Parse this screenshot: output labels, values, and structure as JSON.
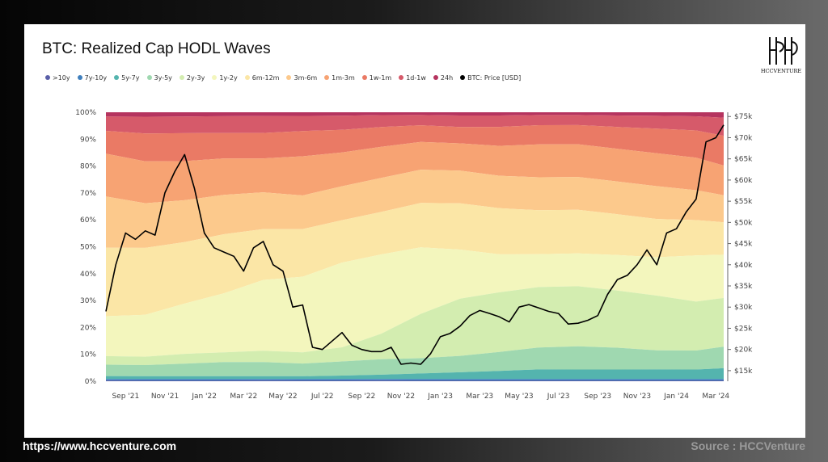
{
  "footer": {
    "url": "https://www.hccventure.com",
    "source": "Source : HCCVenture"
  },
  "logo": {
    "text": "HCCVENTURE"
  },
  "chart_data": {
    "type": "area",
    "stacked": true,
    "title": "BTC: Realized Cap HODL Waves",
    "legend_position": "top-left",
    "grid": false,
    "x_ticks": [
      "Sep '21",
      "Nov '21",
      "Jan '22",
      "Mar '22",
      "May '22",
      "Jul '22",
      "Sep '22",
      "Nov '22",
      "Jan '23",
      "Mar '23",
      "May '23",
      "Jul '23",
      "Sep '23",
      "Nov '23",
      "Jan '24",
      "Mar '24"
    ],
    "x_tick_pos": [
      1,
      3,
      5,
      7,
      9,
      11,
      13,
      15,
      17,
      19,
      21,
      23,
      25,
      27,
      29,
      31
    ],
    "x_range": [
      0,
      31.4
    ],
    "y_left_ticks": [
      "0%",
      "10%",
      "20%",
      "30%",
      "40%",
      "50%",
      "60%",
      "70%",
      "80%",
      "90%",
      "100%"
    ],
    "y_left_range": [
      0,
      100
    ],
    "y_right_ticks": [
      "$15k",
      "$20k",
      "$25k",
      "$30k",
      "$35k",
      "$40k",
      "$45k",
      "$50k",
      "$55k",
      "$60k",
      "$65k",
      "$70k",
      "$75k"
    ],
    "y_right_values": [
      15000,
      20000,
      25000,
      30000,
      35000,
      40000,
      45000,
      50000,
      55000,
      60000,
      65000,
      70000,
      75000
    ],
    "y_right_range": [
      12500,
      76000
    ],
    "months_x": [
      0,
      2,
      4,
      6,
      8,
      10,
      12,
      14,
      16,
      18,
      20,
      22,
      24,
      26,
      28,
      30,
      31.4
    ],
    "series": [
      {
        "name": ">10y",
        "color": "#5a5fa8",
        "values": [
          0.3,
          0.3,
          0.3,
          0.3,
          0.3,
          0.3,
          0.3,
          0.3,
          0.3,
          0.3,
          0.3,
          0.3,
          0.3,
          0.3,
          0.3,
          0.3,
          0.3
        ]
      },
      {
        "name": "7y-10y",
        "color": "#3f7fbd",
        "values": [
          0.5,
          0.5,
          0.5,
          0.5,
          0.5,
          0.5,
          0.5,
          0.5,
          0.5,
          0.5,
          0.5,
          0.5,
          0.5,
          0.5,
          0.5,
          0.5,
          0.5
        ]
      },
      {
        "name": "5y-7y",
        "color": "#54b4ae",
        "values": [
          1,
          1,
          1,
          1,
          1,
          1,
          1.2,
          1.5,
          2,
          2.5,
          3,
          3.5,
          3.5,
          3.5,
          3.5,
          3.5,
          4
        ]
      },
      {
        "name": "3y-5y",
        "color": "#9fd8b0",
        "values": [
          4,
          4,
          4.5,
          5,
          5,
          4.5,
          5,
          5.5,
          5.5,
          6,
          7,
          8,
          8.5,
          8,
          7,
          7,
          8
        ]
      },
      {
        "name": "2y-3y",
        "color": "#d3edb0",
        "values": [
          3,
          3,
          3.5,
          3.5,
          4,
          4,
          5,
          9,
          16,
          21,
          22,
          22,
          22,
          21,
          20,
          18,
          18
        ]
      },
      {
        "name": "1y-2y",
        "color": "#f3f6bd",
        "values": [
          14,
          15,
          18,
          21,
          25,
          27,
          30,
          28,
          24,
          18,
          14,
          12,
          12,
          13,
          14,
          17,
          16
        ]
      },
      {
        "name": "6m-12m",
        "color": "#fbe6a6",
        "values": [
          24,
          24,
          22,
          21,
          18,
          17,
          15,
          15,
          16,
          17,
          17,
          16,
          16,
          15,
          14,
          13,
          12
        ]
      },
      {
        "name": "3m-6m",
        "color": "#fcc98c",
        "values": [
          18,
          16,
          15,
          14,
          13,
          12,
          12,
          12,
          12,
          12,
          12,
          12,
          12,
          12,
          12,
          11,
          10
        ]
      },
      {
        "name": "1m-3m",
        "color": "#f7a373",
        "values": [
          15,
          15,
          14,
          13,
          12,
          14,
          12,
          11,
          10,
          10,
          11,
          12,
          12,
          12,
          12,
          12,
          11
        ]
      },
      {
        "name": "1w-1m",
        "color": "#ea7a65",
        "values": [
          8,
          10,
          10,
          9,
          9,
          9,
          8,
          7,
          6,
          6,
          7,
          7,
          7,
          8,
          9,
          10,
          11
        ]
      },
      {
        "name": "1d-1w",
        "color": "#d65a6a",
        "values": [
          5,
          6,
          6,
          6,
          6,
          5.4,
          5,
          4.2,
          3.7,
          4.2,
          4.2,
          3.7,
          3.7,
          4.2,
          4.7,
          5.2,
          6.7
        ]
      },
      {
        "name": "24h",
        "color": "#b5345f",
        "values": [
          1.5,
          1.6,
          1.5,
          1.4,
          1.3,
          1.3,
          1.2,
          1,
          1,
          1.2,
          1.2,
          1,
          1,
          1.2,
          1.3,
          1.5,
          2
        ]
      }
    ],
    "price": {
      "name": "BTC: Price [USD]",
      "color": "#000000",
      "x": [
        0,
        0.5,
        1,
        1.5,
        2,
        2.5,
        3,
        3.5,
        4,
        4.5,
        5,
        5.5,
        6,
        6.5,
        7,
        7.5,
        8,
        8.5,
        9,
        9.5,
        10,
        10.5,
        11,
        11.5,
        12,
        12.5,
        13,
        13.5,
        14,
        14.5,
        15,
        15.5,
        16,
        16.5,
        17,
        17.5,
        18,
        18.5,
        19,
        19.5,
        20,
        20.5,
        21,
        21.5,
        22,
        22.5,
        23,
        23.5,
        24,
        24.5,
        25,
        25.5,
        26,
        26.5,
        27,
        27.5,
        28,
        28.5,
        29,
        29.5,
        30,
        30.5,
        31,
        31.4
      ],
      "y": [
        29000,
        40000,
        47500,
        46000,
        48000,
        47000,
        57000,
        62000,
        66000,
        58000,
        47500,
        44000,
        43000,
        42000,
        38500,
        44000,
        45500,
        40000,
        38500,
        30000,
        30500,
        20500,
        20000,
        22000,
        24000,
        21000,
        20000,
        19500,
        19500,
        20500,
        16500,
        16800,
        16500,
        19000,
        23000,
        23800,
        25500,
        28000,
        29200,
        28500,
        27700,
        26500,
        30000,
        30600,
        29800,
        29000,
        28500,
        26000,
        26200,
        26900,
        28000,
        33000,
        36500,
        37500,
        40000,
        43500,
        40000,
        47500,
        48500,
        52500,
        55500,
        69000,
        70000,
        73000
      ]
    }
  }
}
